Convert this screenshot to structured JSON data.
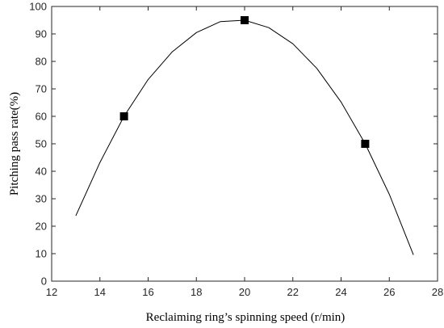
{
  "chart_data": {
    "type": "line",
    "title": "",
    "xlabel": "Reclaiming ring’s spinning speed (r/min)",
    "ylabel": "Pitching pass rate(%)",
    "xlim": [
      12,
      28
    ],
    "ylim": [
      0,
      100
    ],
    "xticks": [
      12,
      14,
      16,
      18,
      20,
      22,
      24,
      26,
      28
    ],
    "yticks": [
      0,
      10,
      20,
      30,
      40,
      50,
      60,
      70,
      80,
      90,
      100
    ],
    "grid": false,
    "legend": "none",
    "series": [
      {
        "kind": "line",
        "color": "#000000",
        "x": [
          13,
          14,
          15,
          16,
          17,
          18,
          19,
          20,
          21,
          22,
          23,
          24,
          25,
          26,
          27
        ],
        "y": [
          23.8,
          43.2,
          60.0,
          73.4,
          83.5,
          90.5,
          94.5,
          95.0,
          92.3,
          86.4,
          77.4,
          65.2,
          50.0,
          31.6,
          9.6
        ]
      },
      {
        "kind": "markers",
        "marker": "square",
        "color": "#000000",
        "x": [
          15,
          20,
          25
        ],
        "y": [
          60,
          95,
          50
        ]
      }
    ]
  }
}
